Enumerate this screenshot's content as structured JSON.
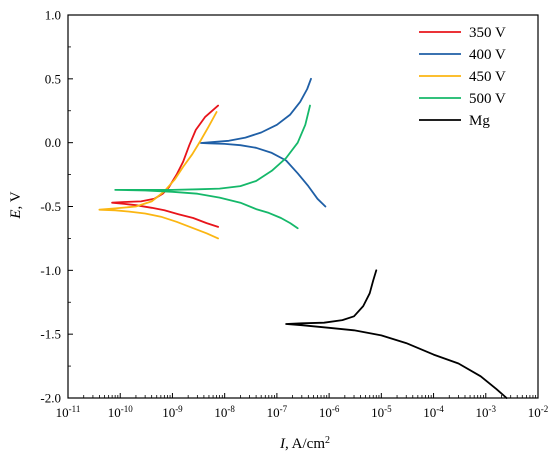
{
  "chart_data": {
    "type": "line",
    "xlabel_var": "I",
    "xlabel_unit": ", A/cm",
    "xlabel_sup": "2",
    "ylabel_var": "E",
    "ylabel_unit": ", V",
    "x_scale": "log",
    "xlim": [
      1e-11,
      0.01
    ],
    "ylim": [
      -2.0,
      1.0
    ],
    "grid": false,
    "legend_position": "top-right",
    "x_ticks": [
      {
        "value": 1e-11,
        "base": "10",
        "exp": "-11"
      },
      {
        "value": 1e-10,
        "base": "10",
        "exp": "-10"
      },
      {
        "value": 1e-09,
        "base": "10",
        "exp": "-9"
      },
      {
        "value": 1e-08,
        "base": "10",
        "exp": "-8"
      },
      {
        "value": 1e-07,
        "base": "10",
        "exp": "-7"
      },
      {
        "value": 1e-06,
        "base": "10",
        "exp": "-6"
      },
      {
        "value": 1e-05,
        "base": "10",
        "exp": "-5"
      },
      {
        "value": 0.0001,
        "base": "10",
        "exp": "-4"
      },
      {
        "value": 0.001,
        "base": "10",
        "exp": "-3"
      },
      {
        "value": 0.01,
        "base": "10",
        "exp": "-2"
      }
    ],
    "y_ticks": [
      {
        "value": 1.0,
        "label": "1.0"
      },
      {
        "value": 0.5,
        "label": "0.5"
      },
      {
        "value": 0.0,
        "label": "0.0"
      },
      {
        "value": -0.5,
        "label": "-0.5"
      },
      {
        "value": -1.0,
        "label": "-1.0"
      },
      {
        "value": -1.5,
        "label": "-1.5"
      },
      {
        "value": -2.0,
        "label": "-2.0"
      }
    ],
    "series": [
      {
        "name": "350 V",
        "color": "#e8141b",
        "points": [
          [
            7.5e-09,
            -0.66
          ],
          [
            4.5e-09,
            -0.63
          ],
          [
            2.5e-09,
            -0.59
          ],
          [
            1.3e-09,
            -0.56
          ],
          [
            7e-10,
            -0.53
          ],
          [
            4e-10,
            -0.51
          ],
          [
            2e-10,
            -0.49
          ],
          [
            1.2e-10,
            -0.48
          ],
          [
            7e-11,
            -0.47
          ],
          [
            1.2e-10,
            -0.465
          ],
          [
            2.5e-10,
            -0.46
          ],
          [
            4.5e-10,
            -0.44
          ],
          [
            6.5e-10,
            -0.4
          ],
          [
            8.5e-10,
            -0.35
          ],
          [
            1.2e-09,
            -0.25
          ],
          [
            1.6e-09,
            -0.15
          ],
          [
            2.1e-09,
            -0.02
          ],
          [
            2.8e-09,
            0.1
          ],
          [
            4.2e-09,
            0.2
          ],
          [
            7.5e-09,
            0.29
          ]
        ]
      },
      {
        "name": "400 V",
        "color": "#1f5fa6",
        "points": [
          [
            8.5e-07,
            -0.5
          ],
          [
            6e-07,
            -0.44
          ],
          [
            4e-07,
            -0.34
          ],
          [
            2.5e-07,
            -0.24
          ],
          [
            1.5e-07,
            -0.14
          ],
          [
            8e-08,
            -0.08
          ],
          [
            4e-08,
            -0.04
          ],
          [
            2e-08,
            -0.02
          ],
          [
            1e-08,
            -0.01
          ],
          [
            5e-09,
            -0.005
          ],
          [
            3.5e-09,
            -0.003
          ],
          [
            6e-09,
            0.005
          ],
          [
            1.2e-08,
            0.015
          ],
          [
            2.5e-08,
            0.04
          ],
          [
            5e-08,
            0.08
          ],
          [
            1e-07,
            0.14
          ],
          [
            1.8e-07,
            0.22
          ],
          [
            2.8e-07,
            0.32
          ],
          [
            3.8e-07,
            0.42
          ],
          [
            4.5e-07,
            0.5
          ]
        ]
      },
      {
        "name": "450 V",
        "color": "#fbb612",
        "points": [
          [
            7.5e-09,
            -0.75
          ],
          [
            4.5e-09,
            -0.71
          ],
          [
            2.5e-09,
            -0.67
          ],
          [
            1.2e-09,
            -0.62
          ],
          [
            6e-10,
            -0.58
          ],
          [
            3e-10,
            -0.555
          ],
          [
            1.5e-10,
            -0.54
          ],
          [
            8e-11,
            -0.53
          ],
          [
            4e-11,
            -0.525
          ],
          [
            8e-11,
            -0.515
          ],
          [
            2e-10,
            -0.5
          ],
          [
            4e-10,
            -0.46
          ],
          [
            7e-10,
            -0.38
          ],
          [
            1.1e-09,
            -0.29
          ],
          [
            1.6e-09,
            -0.19
          ],
          [
            2.4e-09,
            -0.09
          ],
          [
            3.5e-09,
            0.02
          ],
          [
            5e-09,
            0.13
          ],
          [
            7e-09,
            0.24
          ]
        ]
      },
      {
        "name": "500 V",
        "color": "#15b86a",
        "points": [
          [
            2.5e-07,
            -0.67
          ],
          [
            1.8e-07,
            -0.63
          ],
          [
            1.2e-07,
            -0.59
          ],
          [
            7e-08,
            -0.55
          ],
          [
            4e-08,
            -0.52
          ],
          [
            2e-08,
            -0.47
          ],
          [
            8e-09,
            -0.43
          ],
          [
            3e-09,
            -0.4
          ],
          [
            1e-09,
            -0.385
          ],
          [
            3e-10,
            -0.375
          ],
          [
            8e-11,
            -0.37
          ],
          [
            3e-10,
            -0.37
          ],
          [
            1e-09,
            -0.37
          ],
          [
            3e-09,
            -0.365
          ],
          [
            8e-09,
            -0.36
          ],
          [
            2e-08,
            -0.34
          ],
          [
            4e-08,
            -0.3
          ],
          [
            8e-08,
            -0.22
          ],
          [
            1.5e-07,
            -0.12
          ],
          [
            2.5e-07,
            0.0
          ],
          [
            3.5e-07,
            0.14
          ],
          [
            4.3e-07,
            0.29
          ]
        ]
      },
      {
        "name": "Mg",
        "color": "#000000",
        "points": [
          [
            0.0025,
            -2.0
          ],
          [
            0.0016,
            -1.93
          ],
          [
            0.0008,
            -1.83
          ],
          [
            0.0003,
            -1.73
          ],
          [
            0.0001,
            -1.66
          ],
          [
            3e-05,
            -1.57
          ],
          [
            1e-05,
            -1.51
          ],
          [
            3e-06,
            -1.47
          ],
          [
            1e-06,
            -1.45
          ],
          [
            3e-07,
            -1.43
          ],
          [
            1.5e-07,
            -1.42
          ],
          [
            3e-07,
            -1.415
          ],
          [
            8e-07,
            -1.41
          ],
          [
            1.8e-06,
            -1.39
          ],
          [
            3e-06,
            -1.36
          ],
          [
            4.5e-06,
            -1.28
          ],
          [
            6e-06,
            -1.18
          ],
          [
            7e-06,
            -1.08
          ],
          [
            8e-06,
            -1.0
          ]
        ]
      }
    ]
  }
}
